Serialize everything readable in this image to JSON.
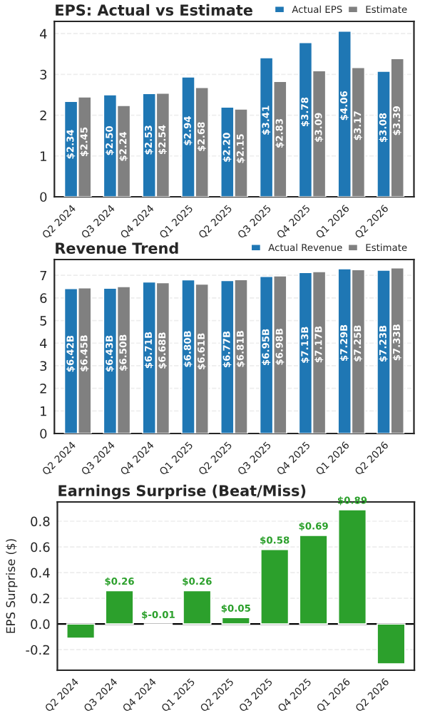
{
  "chart_data": [
    {
      "type": "bar",
      "title": "EPS: Actual vs Estimate",
      "categories": [
        "Q2 2024",
        "Q3 2024",
        "Q4 2024",
        "Q1 2025",
        "Q2 2025",
        "Q3 2025",
        "Q4 2025",
        "Q1 2026",
        "Q2 2026"
      ],
      "series": [
        {
          "name": "Actual EPS",
          "color": "#1f77b4",
          "values": [
            2.34,
            2.5,
            2.53,
            2.94,
            2.2,
            3.41,
            3.78,
            4.06,
            3.08
          ],
          "value_labels": [
            "$2.34",
            "$2.50",
            "$2.53",
            "$2.94",
            "$2.20",
            "$3.41",
            "$3.78",
            "$4.06",
            "$3.08"
          ]
        },
        {
          "name": "Estimate",
          "color": "#808080",
          "values": [
            2.45,
            2.24,
            2.54,
            2.68,
            2.15,
            2.83,
            3.09,
            3.17,
            3.39
          ],
          "value_labels": [
            "$2.45",
            "$2.24",
            "$2.54",
            "$2.68",
            "$2.15",
            "$2.83",
            "$3.09",
            "$3.17",
            "$3.39"
          ]
        }
      ],
      "ylim": [
        0,
        4.3
      ],
      "yticks": [
        0,
        1,
        2,
        3,
        4
      ],
      "grid": "y",
      "legend": "top right"
    },
    {
      "type": "bar",
      "title": "Revenue Trend",
      "categories": [
        "Q2 2024",
        "Q3 2024",
        "Q4 2024",
        "Q1 2025",
        "Q2 2025",
        "Q3 2025",
        "Q4 2025",
        "Q1 2026",
        "Q2 2026"
      ],
      "series": [
        {
          "name": "Actual Revenue",
          "color": "#1f77b4",
          "values": [
            6.42,
            6.43,
            6.71,
            6.8,
            6.77,
            6.95,
            7.13,
            7.29,
            7.23
          ],
          "value_labels": [
            "$6.42B",
            "$6.43B",
            "$6.71B",
            "$6.80B",
            "$6.77B",
            "$6.95B",
            "$7.13B",
            "$7.29B",
            "$7.23B"
          ]
        },
        {
          "name": "Estimate",
          "color": "#808080",
          "values": [
            6.45,
            6.5,
            6.68,
            6.61,
            6.81,
            6.98,
            7.17,
            7.25,
            7.33
          ],
          "value_labels": [
            "$6.45B",
            "$6.50B",
            "$6.68B",
            "$6.61B",
            "$6.81B",
            "$6.98B",
            "$7.17B",
            "$7.25B",
            "$7.33B"
          ]
        }
      ],
      "ylim": [
        0,
        7.7
      ],
      "yticks": [
        0,
        1,
        2,
        3,
        4,
        5,
        6,
        7
      ],
      "grid": "y",
      "legend": "top right"
    },
    {
      "type": "bar",
      "title": "Earnings Surprise (Beat/Miss)",
      "ylabel": "EPS Surprise ($)",
      "categories": [
        "Q2 2024",
        "Q3 2024",
        "Q4 2024",
        "Q1 2025",
        "Q2 2025",
        "Q3 2025",
        "Q4 2025",
        "Q1 2026",
        "Q2 2026"
      ],
      "series": [
        {
          "color": "#2ca02c",
          "values": [
            -0.11,
            0.26,
            -0.01,
            0.26,
            0.05,
            0.58,
            0.69,
            0.89,
            -0.31
          ],
          "value_labels": [
            null,
            "$0.26",
            "$-0.01",
            "$0.26",
            "$0.05",
            "$0.58",
            "$0.69",
            "$0.89",
            null
          ]
        }
      ],
      "ylim": [
        -0.36,
        0.95
      ],
      "yticks": [
        -0.2,
        {
          "value": 0,
          "label": "0.0"
        },
        0.2,
        0.4,
        0.6,
        0.8
      ],
      "grid": "y",
      "ref_lines": [
        {
          "axis": "y",
          "value": 0,
          "color": "#000000"
        }
      ]
    }
  ]
}
